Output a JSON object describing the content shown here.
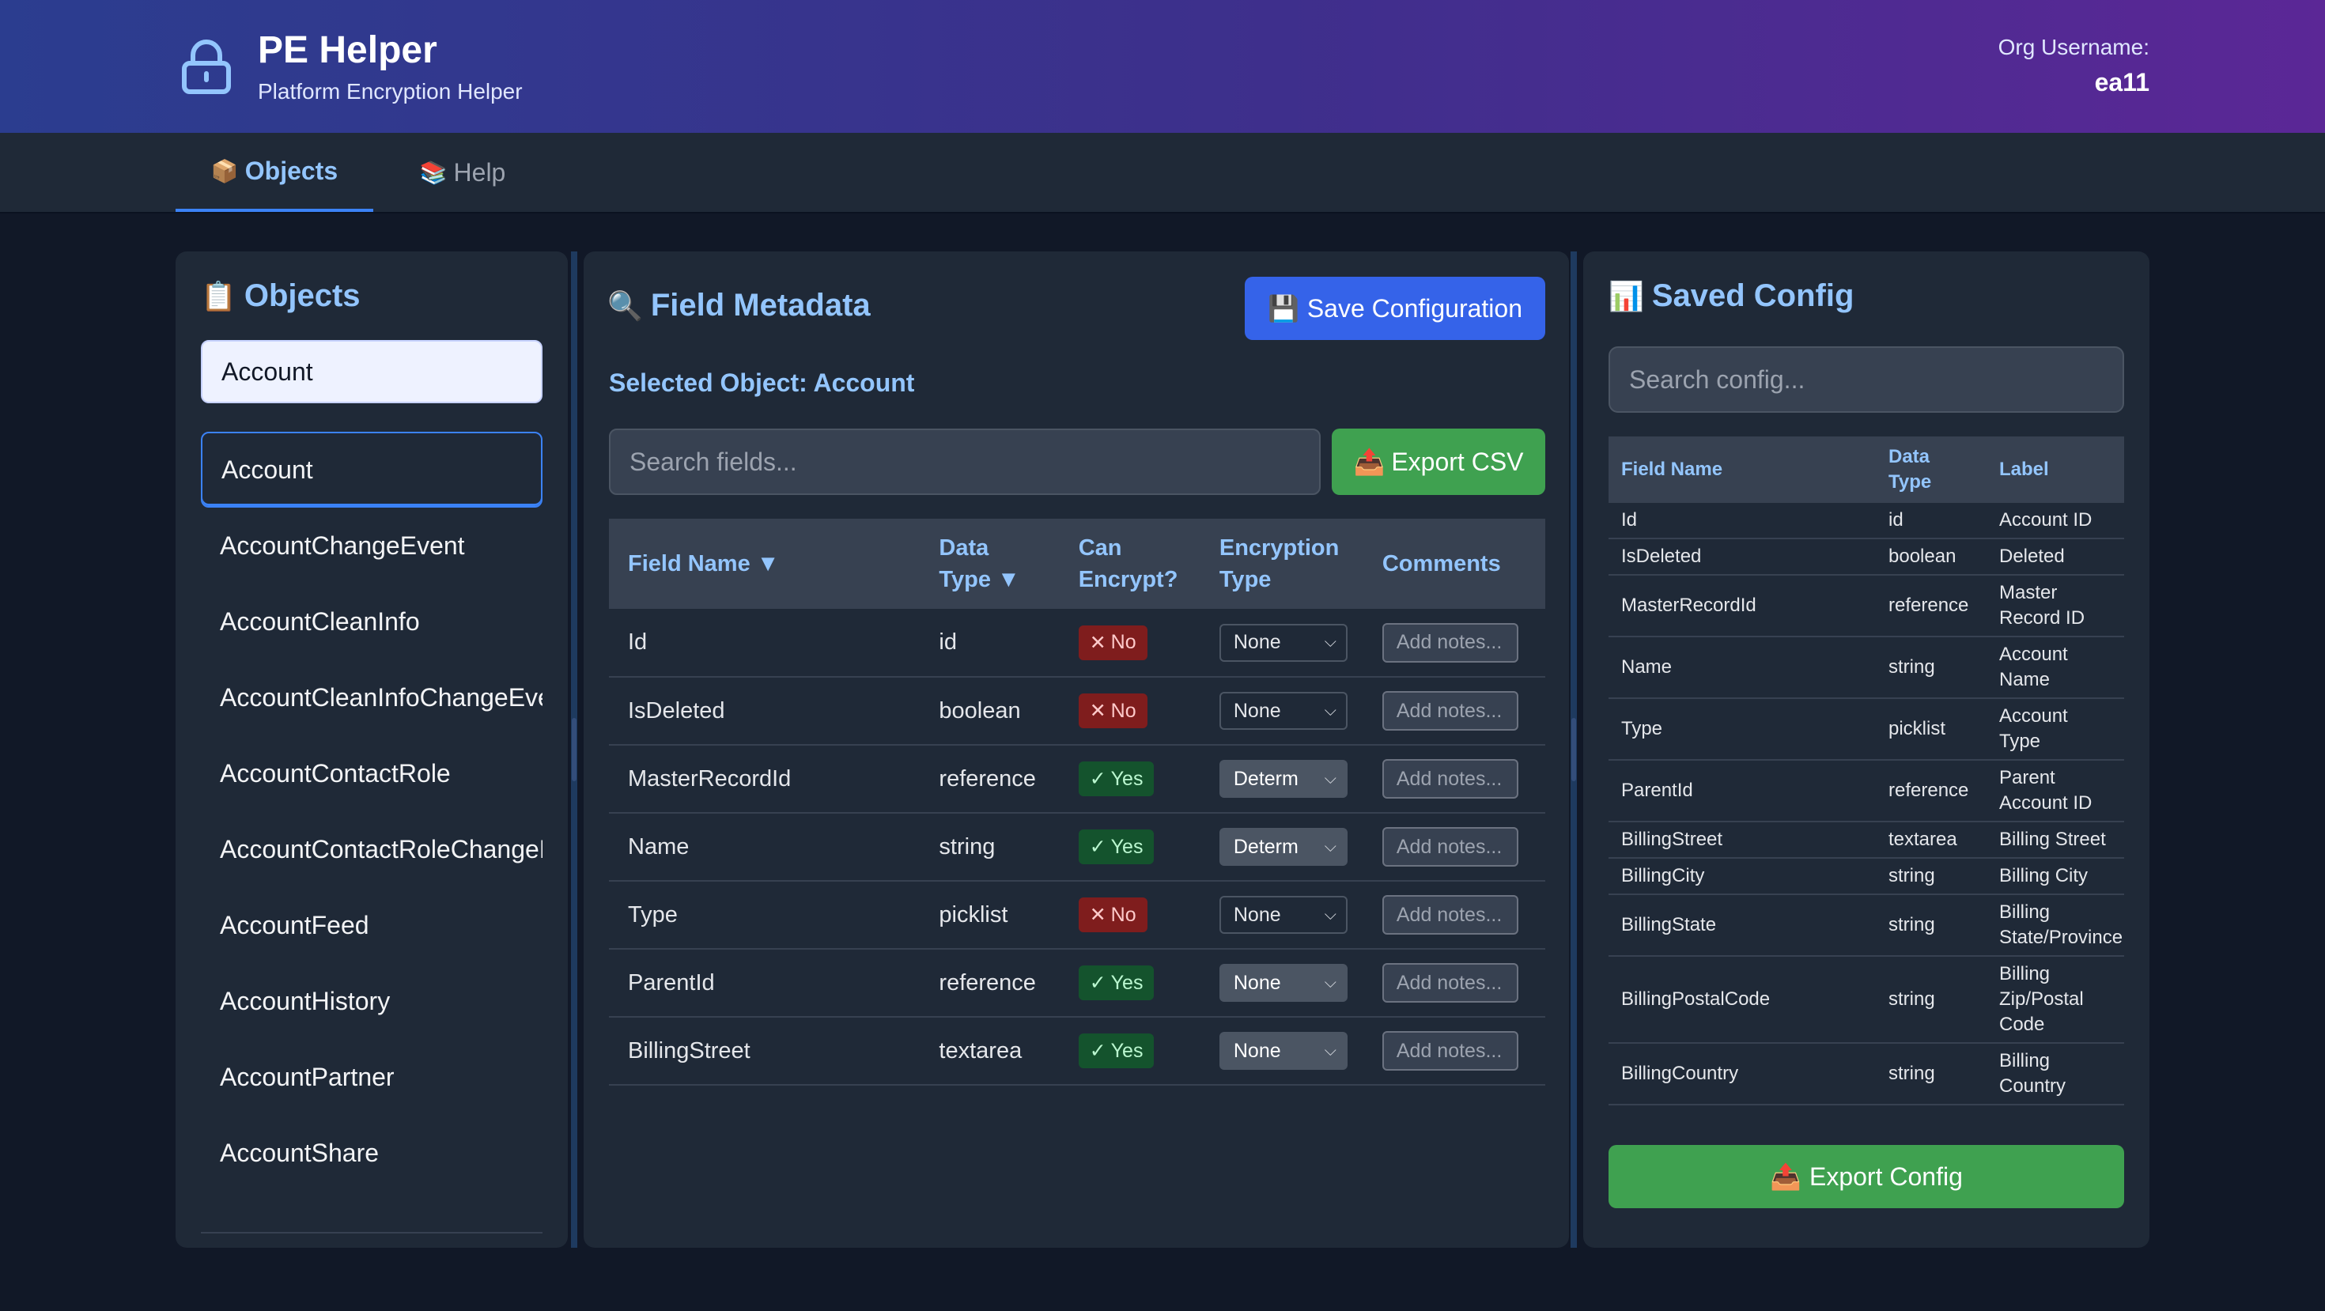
{
  "header": {
    "title": "PE Helper",
    "subtitle": "Platform Encryption Helper",
    "org_label": "Org Username:",
    "org_value": "ea11",
    "icon": "lock-icon"
  },
  "tabs": [
    {
      "label": "Objects",
      "icon": "📦",
      "active": true
    },
    {
      "label": "Help",
      "icon": "📚",
      "active": false
    }
  ],
  "objects_panel": {
    "title": "Objects",
    "icon": "📋",
    "input_value": "Account",
    "items": [
      "Account",
      "AccountChangeEvent",
      "AccountCleanInfo",
      "AccountCleanInfoChangeEvent",
      "AccountContactRole",
      "AccountContactRoleChangeEvent",
      "AccountFeed",
      "AccountHistory",
      "AccountPartner",
      "AccountShare"
    ],
    "selected_item": "Account"
  },
  "field_panel": {
    "title": "Field Metadata",
    "icon": "🔍",
    "save_label": "Save Configuration",
    "save_icon": "💾",
    "selected_object": "Selected Object: Account",
    "search_placeholder": "Search fields...",
    "export_csv_label": "Export CSV",
    "export_icon": "📤",
    "columns": [
      "Field Name ▼",
      "Data Type ▼",
      "Can Encrypt?",
      "Encryption Type",
      "Comments"
    ],
    "rows": [
      {
        "name": "Id",
        "type": "id",
        "can_encrypt": "No",
        "enc_type": "None",
        "notes_placeholder": "Add notes..."
      },
      {
        "name": "IsDeleted",
        "type": "boolean",
        "can_encrypt": "No",
        "enc_type": "None",
        "notes_placeholder": "Add notes..."
      },
      {
        "name": "MasterRecordId",
        "type": "reference",
        "can_encrypt": "Yes",
        "enc_type": "Determ",
        "notes_placeholder": "Add notes..."
      },
      {
        "name": "Name",
        "type": "string",
        "can_encrypt": "Yes",
        "enc_type": "Determ",
        "notes_placeholder": "Add notes..."
      },
      {
        "name": "Type",
        "type": "picklist",
        "can_encrypt": "No",
        "enc_type": "None",
        "notes_placeholder": "Add notes..."
      },
      {
        "name": "ParentId",
        "type": "reference",
        "can_encrypt": "Yes",
        "enc_type": "None",
        "notes_placeholder": "Add notes..."
      },
      {
        "name": "BillingStreet",
        "type": "textarea",
        "can_encrypt": "Yes",
        "enc_type": "None",
        "notes_placeholder": "Add notes..."
      }
    ],
    "yes_mark": "✓",
    "no_mark": "✕"
  },
  "config_panel": {
    "title": "Saved Config",
    "icon": "📊",
    "search_placeholder": "Search config...",
    "columns": [
      "Field Name",
      "Data Type",
      "Label"
    ],
    "rows": [
      {
        "field": "Id",
        "type": "id",
        "label": "Account ID"
      },
      {
        "field": "IsDeleted",
        "type": "boolean",
        "label": "Deleted"
      },
      {
        "field": "MasterRecordId",
        "type": "reference",
        "label": "Master Record ID"
      },
      {
        "field": "Name",
        "type": "string",
        "label": "Account Name"
      },
      {
        "field": "Type",
        "type": "picklist",
        "label": "Account Type"
      },
      {
        "field": "ParentId",
        "type": "reference",
        "label": "Parent Account ID"
      },
      {
        "field": "BillingStreet",
        "type": "textarea",
        "label": "Billing Street"
      },
      {
        "field": "BillingCity",
        "type": "string",
        "label": "Billing City"
      },
      {
        "field": "BillingState",
        "type": "string",
        "label": "Billing State/Province"
      },
      {
        "field": "BillingPostalCode",
        "type": "string",
        "label": "Billing Zip/Postal Code"
      },
      {
        "field": "BillingCountry",
        "type": "string",
        "label": "Billing Country"
      }
    ],
    "export_label": "Export Config",
    "export_icon": "📤"
  }
}
